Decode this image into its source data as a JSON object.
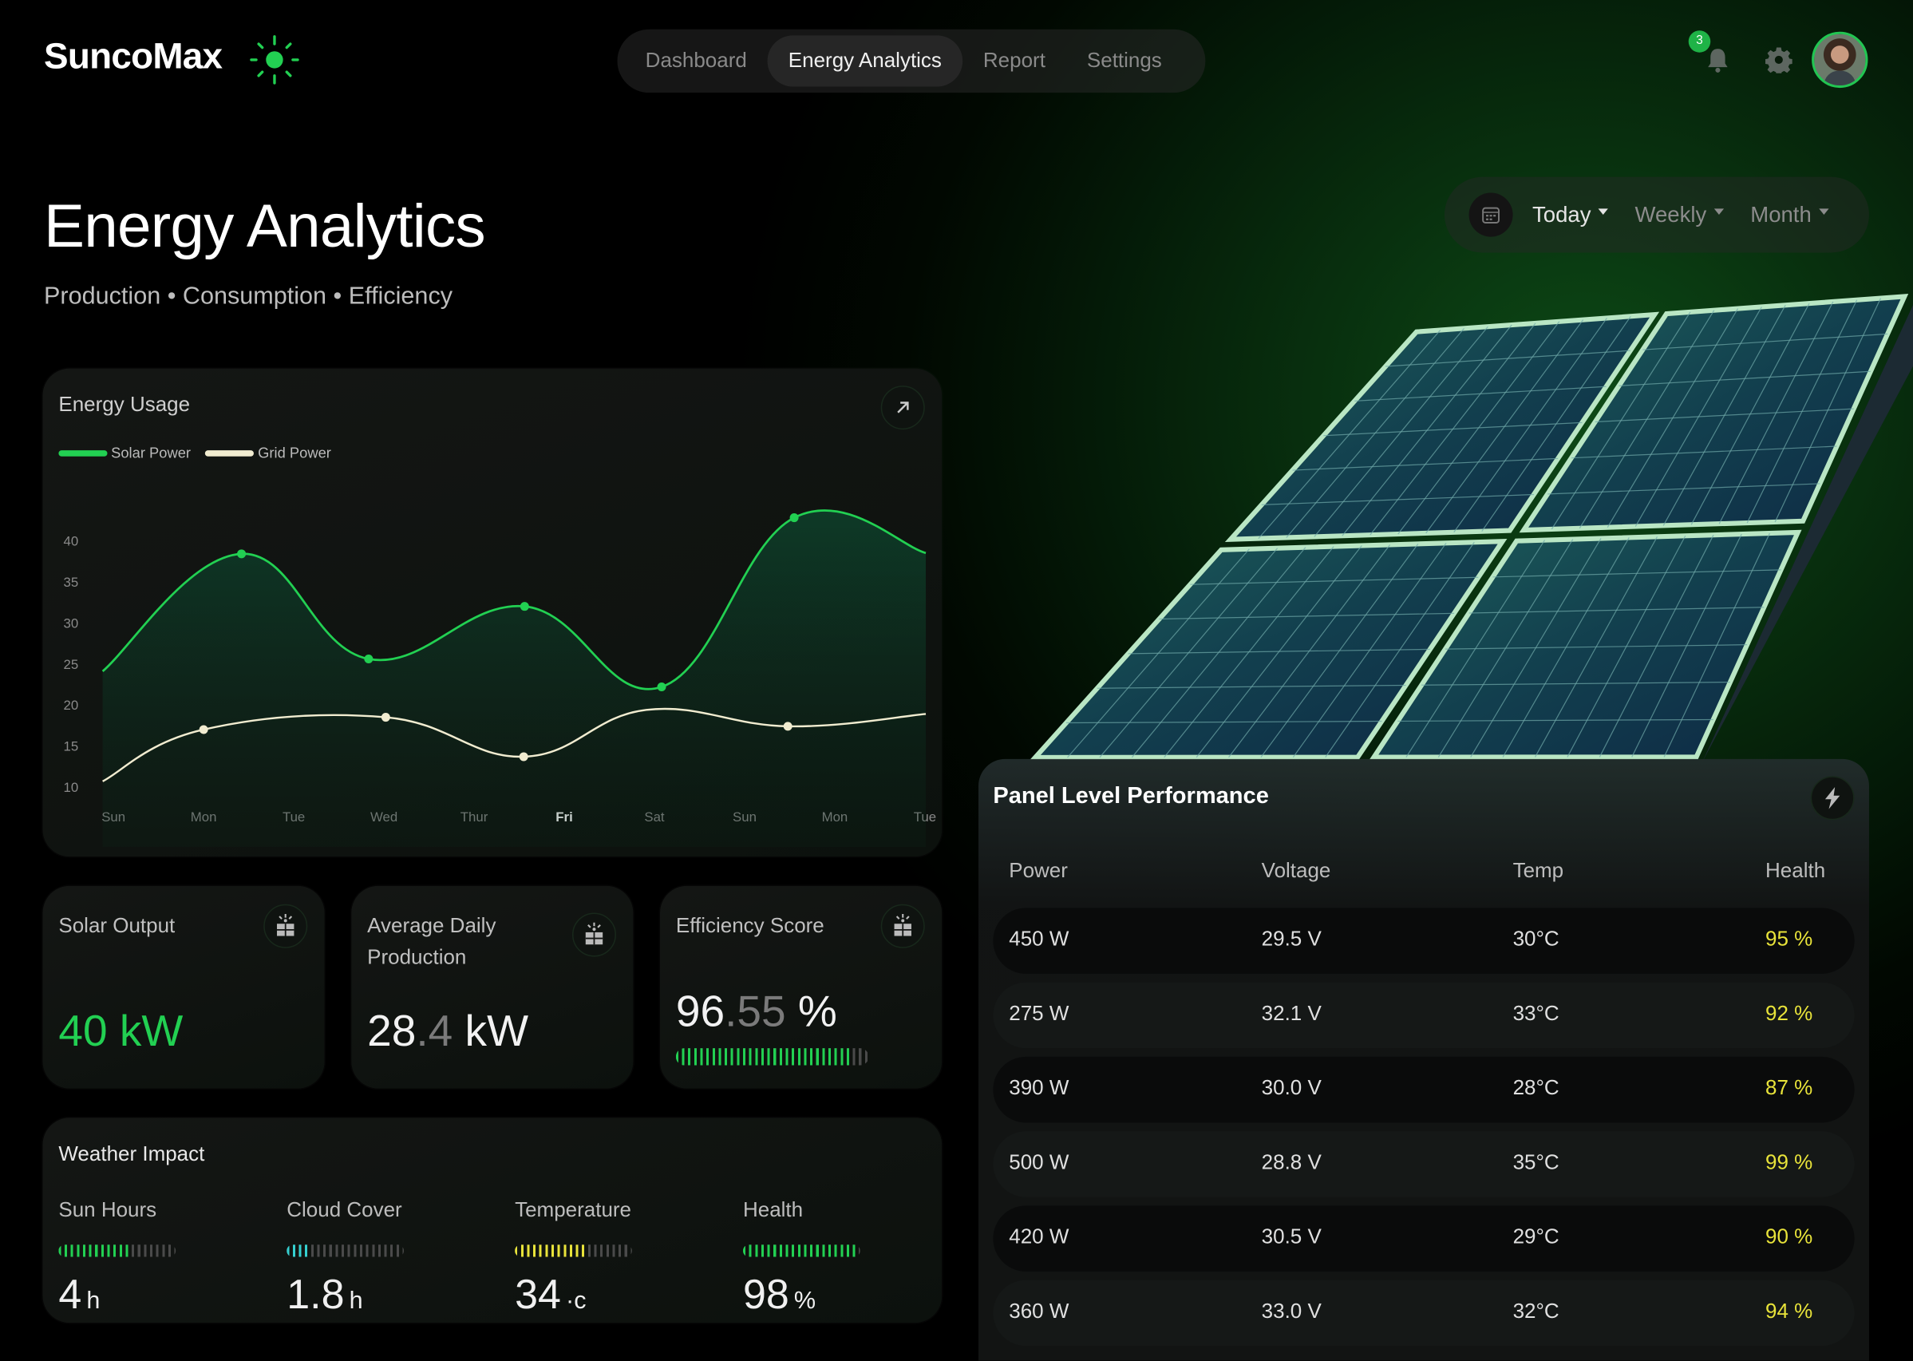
{
  "brand": {
    "name": "SuncoMax",
    "accent": "#22c552"
  },
  "nav": {
    "tabs": [
      {
        "label": "Dashboard"
      },
      {
        "label": "Energy Analytics",
        "active": true
      },
      {
        "label": "Report"
      },
      {
        "label": "Settings"
      }
    ]
  },
  "header": {
    "notification_count": "3"
  },
  "page": {
    "title": "Energy Analytics",
    "subtitle": "Production • Consumption • Efficiency"
  },
  "range": {
    "options": [
      {
        "label": "Today",
        "active": true
      },
      {
        "label": "Weekly"
      },
      {
        "label": "Month"
      }
    ]
  },
  "energy_usage": {
    "title": "Energy Usage"
  },
  "chart_data": {
    "type": "line",
    "title": "Energy Usage",
    "categories": [
      "Sun",
      "Mon",
      "Tue",
      "Wed",
      "Thur",
      "Fri",
      "Sat",
      "Sun",
      "Mon",
      "Tue"
    ],
    "highlight_category": "Fri",
    "yticks": [
      "40",
      "35",
      "30",
      "25",
      "20",
      "15",
      "10"
    ],
    "ylim": [
      10,
      40
    ],
    "legend": "top-left",
    "series": [
      {
        "name": "Solar Power",
        "color": "#22d052",
        "fill": true,
        "points": [
          [
            -0.12,
            24.1
          ],
          [
            1.42,
            38.4
          ],
          [
            2.83,
            25.6
          ],
          [
            4.56,
            32.0
          ],
          [
            6.08,
            22.2
          ],
          [
            7.55,
            42.8
          ],
          [
            9.01,
            38.5
          ]
        ],
        "markers": [
          1,
          2,
          3,
          4,
          5
        ]
      },
      {
        "name": "Grid Power",
        "color": "#f1ecd0",
        "fill": false,
        "points": [
          [
            -0.12,
            10.7
          ],
          [
            1.0,
            17.0
          ],
          [
            3.02,
            18.5
          ],
          [
            4.55,
            13.7
          ],
          [
            5.91,
            19.4
          ],
          [
            7.48,
            17.4
          ],
          [
            9.01,
            18.9
          ]
        ],
        "markers": [
          1,
          2,
          3,
          5
        ]
      }
    ]
  },
  "stats": [
    {
      "label": "Solar Output",
      "value": "40 kW",
      "color": "#22d052"
    },
    {
      "label": "Average Daily Production",
      "value_int": "28",
      "value_dec": ".4",
      "value_unit": " kW"
    },
    {
      "label": "Efficiency Score",
      "value_int": "96",
      "value_dec": ".55",
      "value_unit": " %",
      "progress": 0.9
    }
  ],
  "weather": {
    "title": "Weather Impact",
    "items": [
      {
        "label": "Sun Hours",
        "value": "4",
        "unit": "h",
        "progress": 0.6,
        "color": "#22d052"
      },
      {
        "label": "Cloud Cover",
        "value": "1.8",
        "unit": "h",
        "progress": 0.2,
        "color": "#35d0d0"
      },
      {
        "label": "Temperature",
        "value": "34",
        "unit": "·c",
        "progress": 0.6,
        "color": "#e8e33a"
      },
      {
        "label": "Health",
        "value": "98",
        "unit": "%",
        "progress": 0.98,
        "color": "#22d052"
      }
    ]
  },
  "panel_performance": {
    "title": "Panel Level Performance",
    "columns": [
      "Power",
      "Voltage",
      "Temp",
      "Health"
    ],
    "rows": [
      [
        "450 W",
        "29.5 V",
        "30°C",
        "95 %"
      ],
      [
        "275 W",
        "32.1 V",
        "33°C",
        "92 %"
      ],
      [
        "390 W",
        "30.0 V",
        "28°C",
        "87 %"
      ],
      [
        "500 W",
        "28.8 V",
        "35°C",
        "99 %"
      ],
      [
        "420 W",
        "30.5 V",
        "29°C",
        "90 %"
      ],
      [
        "360 W",
        "33.0 V",
        "32°C",
        "94 %"
      ]
    ]
  }
}
